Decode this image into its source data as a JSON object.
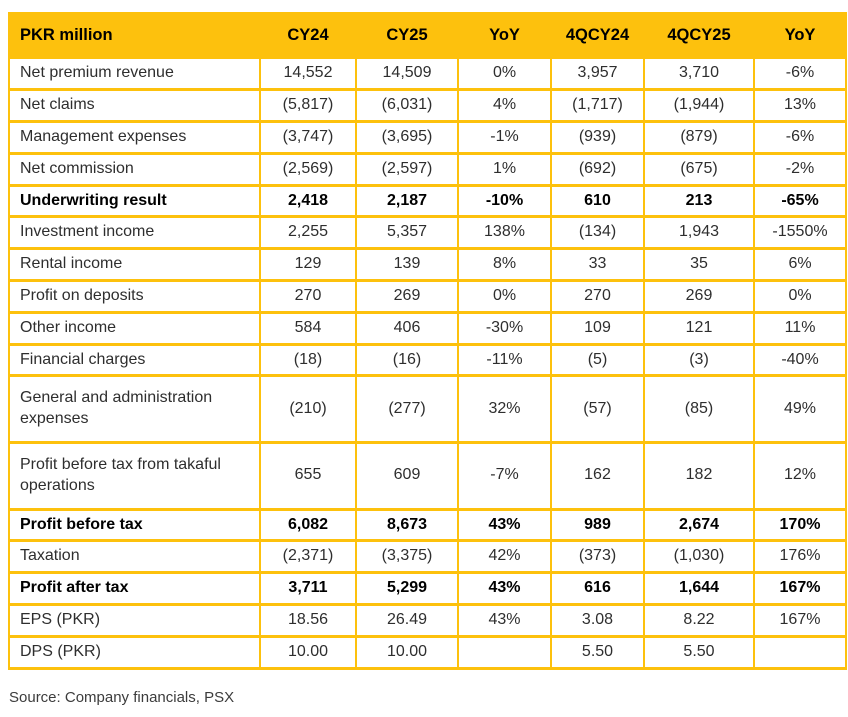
{
  "colors": {
    "gold": "#FDC10D",
    "body_text": "#2E2E2E",
    "bold_text": "#000000",
    "source_text": "#3C3C3C"
  },
  "chart_data": {
    "type": "table",
    "title": "PKR million",
    "columns": [
      "CY24",
      "CY25",
      "YoY",
      "4QCY24",
      "4QCY25",
      "YoY"
    ],
    "rows": [
      {
        "label": "Net premium revenue",
        "bold": false,
        "tall": false,
        "values": [
          "14,552",
          "14,509",
          "0%",
          "3,957",
          "3,710",
          "-6%"
        ]
      },
      {
        "label": "Net claims",
        "bold": false,
        "tall": false,
        "values": [
          "(5,817)",
          "(6,031)",
          "4%",
          "(1,717)",
          "(1,944)",
          "13%"
        ]
      },
      {
        "label": "Management expenses",
        "bold": false,
        "tall": false,
        "values": [
          "(3,747)",
          "(3,695)",
          "-1%",
          "(939)",
          "(879)",
          "-6%"
        ]
      },
      {
        "label": "Net commission",
        "bold": false,
        "tall": false,
        "values": [
          "(2,569)",
          "(2,597)",
          "1%",
          "(692)",
          "(675)",
          "-2%"
        ]
      },
      {
        "label": "Underwriting result",
        "bold": true,
        "tall": false,
        "values": [
          "2,418",
          "2,187",
          "-10%",
          "610",
          "213",
          "-65%"
        ]
      },
      {
        "label": "Investment income",
        "bold": false,
        "tall": false,
        "values": [
          "2,255",
          "5,357",
          "138%",
          "(134)",
          "1,943",
          "-1550%"
        ]
      },
      {
        "label": "Rental income",
        "bold": false,
        "tall": false,
        "values": [
          "129",
          "139",
          "8%",
          "33",
          "35",
          "6%"
        ]
      },
      {
        "label": "Profit on deposits",
        "bold": false,
        "tall": false,
        "values": [
          "270",
          "269",
          "0%",
          "270",
          "269",
          "0%"
        ]
      },
      {
        "label": "Other income",
        "bold": false,
        "tall": false,
        "values": [
          "584",
          "406",
          "-30%",
          "109",
          "121",
          "11%"
        ]
      },
      {
        "label": "Financial charges",
        "bold": false,
        "tall": false,
        "values": [
          "(18)",
          "(16)",
          "-11%",
          "(5)",
          "(3)",
          "-40%"
        ]
      },
      {
        "label": "General and administration expenses",
        "bold": false,
        "tall": true,
        "values": [
          "(210)",
          "(277)",
          "32%",
          "(57)",
          "(85)",
          "49%"
        ]
      },
      {
        "label": "Profit before tax from takaful operations",
        "bold": false,
        "tall": true,
        "values": [
          "655",
          "609",
          "-7%",
          "162",
          "182",
          "12%"
        ]
      },
      {
        "label": "Profit before tax",
        "bold": true,
        "tall": false,
        "values": [
          "6,082",
          "8,673",
          "43%",
          "989",
          "2,674",
          "170%"
        ]
      },
      {
        "label": "Taxation",
        "bold": false,
        "tall": false,
        "values": [
          "(2,371)",
          "(3,375)",
          "42%",
          "(373)",
          "(1,030)",
          "176%"
        ]
      },
      {
        "label": "Profit after tax",
        "bold": true,
        "tall": false,
        "values": [
          "3,711",
          "5,299",
          "43%",
          "616",
          "1,644",
          "167%"
        ]
      },
      {
        "label": "EPS (PKR)",
        "bold": false,
        "tall": false,
        "values": [
          "18.56",
          "26.49",
          "43%",
          "3.08",
          "8.22",
          "167%"
        ]
      },
      {
        "label": "DPS (PKR)",
        "bold": false,
        "tall": false,
        "values": [
          "10.00",
          "10.00",
          "",
          "5.50",
          "5.50",
          ""
        ]
      }
    ]
  },
  "footer": {
    "source": "Source: Company financials, PSX"
  }
}
